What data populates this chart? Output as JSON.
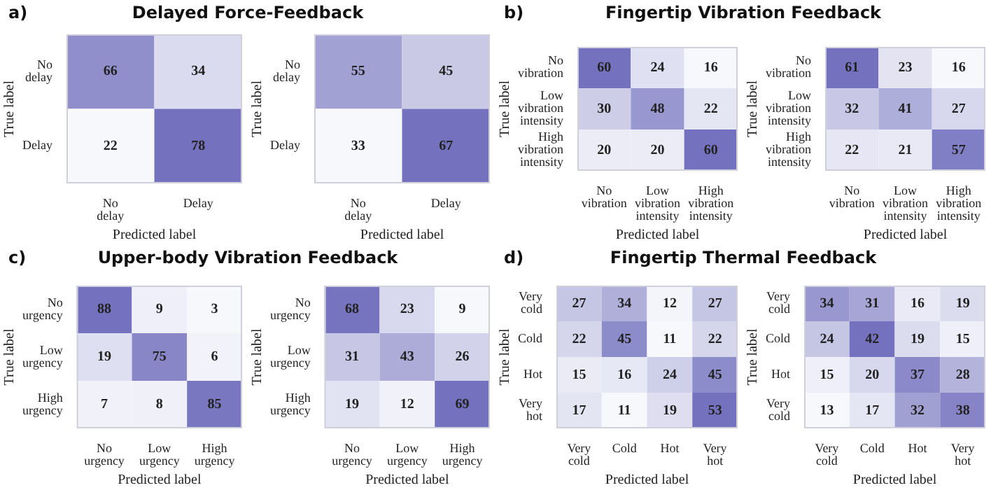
{
  "chart_data": [
    {
      "type": "heatmap",
      "title": "Delayed Force-Feedback",
      "annotations": [
        "a)"
      ],
      "xlabel": "Predicted label",
      "ylabel": "True label",
      "categories": [
        "No delay",
        "Delay"
      ],
      "y_categories": [
        "No delay",
        "Delay"
      ],
      "cells": [
        [
          66,
          34
        ],
        [
          22,
          78
        ]
      ],
      "data_labels": true
    },
    {
      "type": "heatmap",
      "xlabel": "Predicted label",
      "ylabel": "True label",
      "categories": [
        "No delay",
        "Delay"
      ],
      "y_categories": [
        "No delay",
        "Delay"
      ],
      "cells": [
        [
          55,
          45
        ],
        [
          33,
          67
        ]
      ],
      "data_labels": true
    },
    {
      "type": "heatmap",
      "title": "Fingertip Vibration Feedback",
      "annotations": [
        "b)"
      ],
      "xlabel": "Predicted label",
      "ylabel": "True label",
      "categories": [
        "No vibration",
        "Low vibration intensity",
        "High vibration intensity"
      ],
      "y_categories": [
        "No vibration",
        "Low vibration intensity",
        "High vibration intensity"
      ],
      "cells": [
        [
          60,
          24,
          16
        ],
        [
          30,
          48,
          22
        ],
        [
          20,
          20,
          60
        ]
      ],
      "data_labels": true
    },
    {
      "type": "heatmap",
      "xlabel": "Predicted label",
      "ylabel": "True label",
      "categories": [
        "No vibration",
        "Low vibration intensity",
        "High vibration intensity"
      ],
      "y_categories": [
        "No vibration",
        "Low vibration intensity",
        "High vibration intensity"
      ],
      "cells": [
        [
          61,
          23,
          16
        ],
        [
          32,
          41,
          27
        ],
        [
          22,
          21,
          57
        ]
      ],
      "data_labels": true
    },
    {
      "type": "heatmap",
      "title": "Upper-body Vibration Feedback",
      "annotations": [
        "c)"
      ],
      "xlabel": "Predicted label",
      "ylabel": "True label",
      "categories": [
        "No urgency",
        "Low urgency",
        "High urgency"
      ],
      "y_categories": [
        "No urgency",
        "Low urgency",
        "High urgency"
      ],
      "cells": [
        [
          88,
          9,
          3
        ],
        [
          19,
          75,
          6
        ],
        [
          7,
          8,
          85
        ]
      ],
      "data_labels": true
    },
    {
      "type": "heatmap",
      "xlabel": "Predicted label",
      "ylabel": "True label",
      "categories": [
        "No urgency",
        "Low urgency",
        "High urgency"
      ],
      "y_categories": [
        "No urgency",
        "Low urgency",
        "High urgency"
      ],
      "cells": [
        [
          68,
          23,
          9
        ],
        [
          31,
          43,
          26
        ],
        [
          19,
          12,
          69
        ]
      ],
      "data_labels": true
    },
    {
      "type": "heatmap",
      "title": "Fingertip Thermal Feedback",
      "annotations": [
        "d)"
      ],
      "xlabel": "Predicted label",
      "ylabel": "True label",
      "categories": [
        "Very cold",
        "Cold",
        "Hot",
        "Very hot"
      ],
      "y_categories": [
        "Very cold",
        "Cold",
        "Hot",
        "Very hot"
      ],
      "cells": [
        [
          27,
          34,
          12,
          27
        ],
        [
          22,
          45,
          11,
          22
        ],
        [
          15,
          16,
          24,
          45
        ],
        [
          17,
          11,
          19,
          53
        ]
      ],
      "data_labels": true
    },
    {
      "type": "heatmap",
      "xlabel": "Predicted label",
      "ylabel": "True label",
      "categories": [
        "Very cold",
        "Cold",
        "Hot",
        "Very hot"
      ],
      "y_categories": [
        "Very cold",
        "Cold",
        "Hot",
        "Very cold"
      ],
      "cells": [
        [
          34,
          31,
          16,
          19
        ],
        [
          24,
          42,
          19,
          15
        ],
        [
          15,
          20,
          37,
          28
        ],
        [
          13,
          17,
          32,
          38
        ]
      ],
      "data_labels": true
    }
  ]
}
